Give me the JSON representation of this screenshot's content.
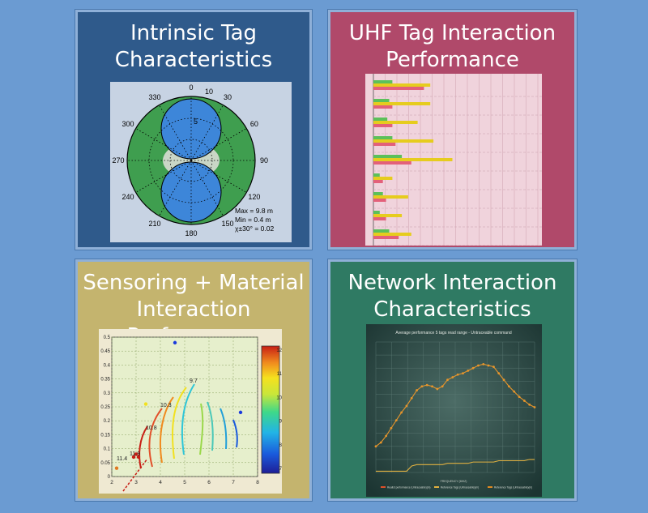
{
  "panels": {
    "tag": {
      "title_line1": "Intrinsic Tag",
      "title_line2": "Characteristics"
    },
    "uhf": {
      "title_line1": "UHF Tag Interaction",
      "title_line2": "Performance"
    },
    "sensor": {
      "title_line1": "Sensoring + Material",
      "title_line2": "Interaction Performance"
    },
    "network": {
      "title_line1": "Network Interaction",
      "title_line2": "Characteristics"
    }
  },
  "polar": {
    "angle_labels": [
      "0",
      "30",
      "60",
      "90",
      "120",
      "150",
      "180",
      "210",
      "240",
      "270",
      "300",
      "330"
    ],
    "radial_labels": [
      "5",
      "10"
    ],
    "stats": [
      "Max = 9.8 m",
      "Min = 0.4 m",
      "χ±30° = 0.02"
    ]
  },
  "colors": {
    "green": "#3f9e4f",
    "blue": "#3d86d9",
    "pink_bar": "#e3607a",
    "yellow_bar": "#e6cc1e",
    "green_bar": "#5cc05a",
    "line_orange": "#e7952b"
  },
  "chart_data": [
    {
      "type": "bar",
      "series": [
        {
          "name": "",
          "values": [
            0.8,
            0.3,
            0.3,
            0.35,
            0.6,
            0.15,
            0.2,
            0.2,
            0.4
          ]
        },
        {
          "name": "",
          "values": [
            0.3,
            0.25,
            0.22,
            0.3,
            0.45,
            0.1,
            0.15,
            0.1,
            0.25
          ]
        },
        {
          "name": "",
          "values": [
            0.9,
            0.9,
            0.7,
            0.95,
            1.25,
            0.3,
            0.55,
            0.45,
            0.6
          ]
        }
      ]
    },
    {
      "type": "scatter",
      "xlim": [
        2,
        8
      ],
      "ylim": [
        0,
        0.5
      ],
      "x_ticks": [
        "2",
        "3",
        "4",
        "5",
        "6",
        "7",
        "8"
      ],
      "y_ticks": [
        "0",
        "0.05",
        "0.1",
        "0.15",
        "0.2",
        "0.25",
        "0.3",
        "0.35",
        "0.4",
        "0.45",
        "0.5"
      ],
      "colorbar_ticks": [
        "7",
        "8",
        "9",
        "10",
        "11",
        "12"
      ],
      "contour_labels": [
        "10.3",
        "9.7",
        "10.8",
        "11.4",
        "11.9"
      ],
      "points": [
        {
          "x": 2.2,
          "y": 0.03
        },
        {
          "x": 2.9,
          "y": 0.07
        },
        {
          "x": 3.0,
          "y": 0.08
        },
        {
          "x": 3.1,
          "y": 0.07
        },
        {
          "x": 3.4,
          "y": 0.26
        },
        {
          "x": 4.6,
          "y": 0.48
        },
        {
          "x": 7.3,
          "y": 0.23
        }
      ]
    },
    {
      "type": "line",
      "title": "Average performance 5 tags read range - Untraceable command",
      "xlabel": "FREQUENCY (MHZ)",
      "ylim": [
        0,
        10
      ],
      "legend": [
        "Realist performance (Untraceable)(m)",
        "Reference Tags (Untraceable)(m)",
        "Reference Tags (Untraceable)(m)"
      ],
      "series": [
        {
          "name": "Realist performance (Untraceable)(m)",
          "values": [
            2.0,
            2.3,
            2.8,
            3.4,
            4.0,
            4.6,
            5.1,
            5.7,
            6.3,
            6.6,
            6.7,
            6.6,
            6.4,
            6.6,
            7.1,
            7.3,
            7.5,
            7.6,
            7.8,
            8.0,
            8.2,
            8.3,
            8.2,
            8.1,
            7.6,
            7.1,
            6.6,
            6.2,
            5.8,
            5.5,
            5.2,
            5.0
          ]
        },
        {
          "name": "Reference Tags (Untraceable)(m)",
          "values": [
            0.1,
            0.1,
            0.1,
            0.1,
            0.1,
            0.1,
            0.1,
            0.5,
            0.6,
            0.6,
            0.6,
            0.6,
            0.6,
            0.6,
            0.7,
            0.7,
            0.7,
            0.7,
            0.7,
            0.8,
            0.8,
            0.8,
            0.8,
            0.8,
            0.9,
            0.9,
            0.9,
            0.9,
            0.9,
            0.9,
            1.0,
            1.0
          ]
        }
      ]
    }
  ]
}
